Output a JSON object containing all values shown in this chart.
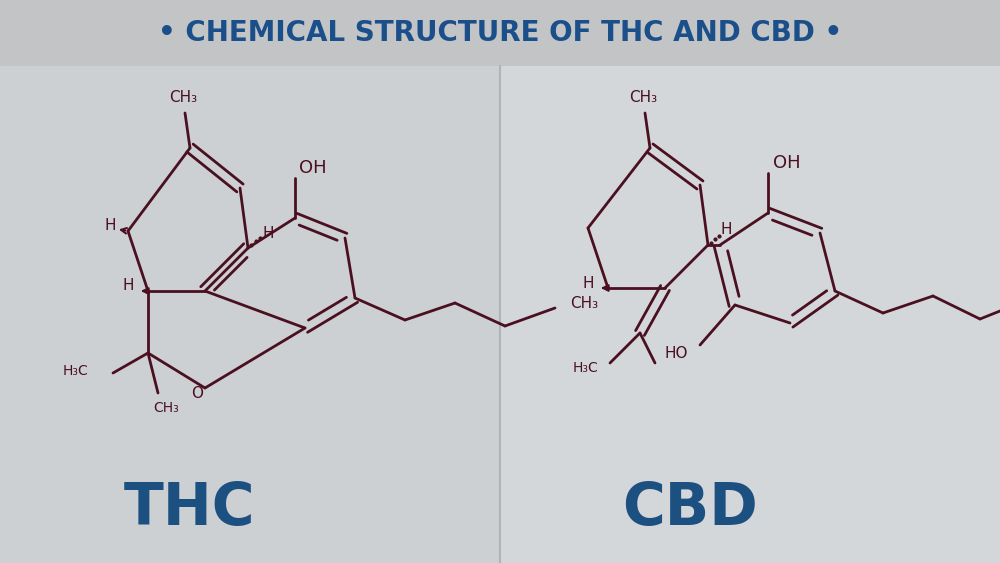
{
  "title": "• CHEMICAL STRUCTURE OF THC AND CBD •",
  "title_color": "#1b4f8a",
  "title_bg_color": "#c2c4c6",
  "main_bg_color": "#d2d5d8",
  "panel_bg_left": "#cdd0d3",
  "panel_bg_right": "#d4d7da",
  "molecule_color": "#4a1020",
  "thc_label": "THC",
  "cbd_label": "CBD",
  "label_color": "#1b5080",
  "label_fontsize": 42,
  "title_fontsize": 20
}
